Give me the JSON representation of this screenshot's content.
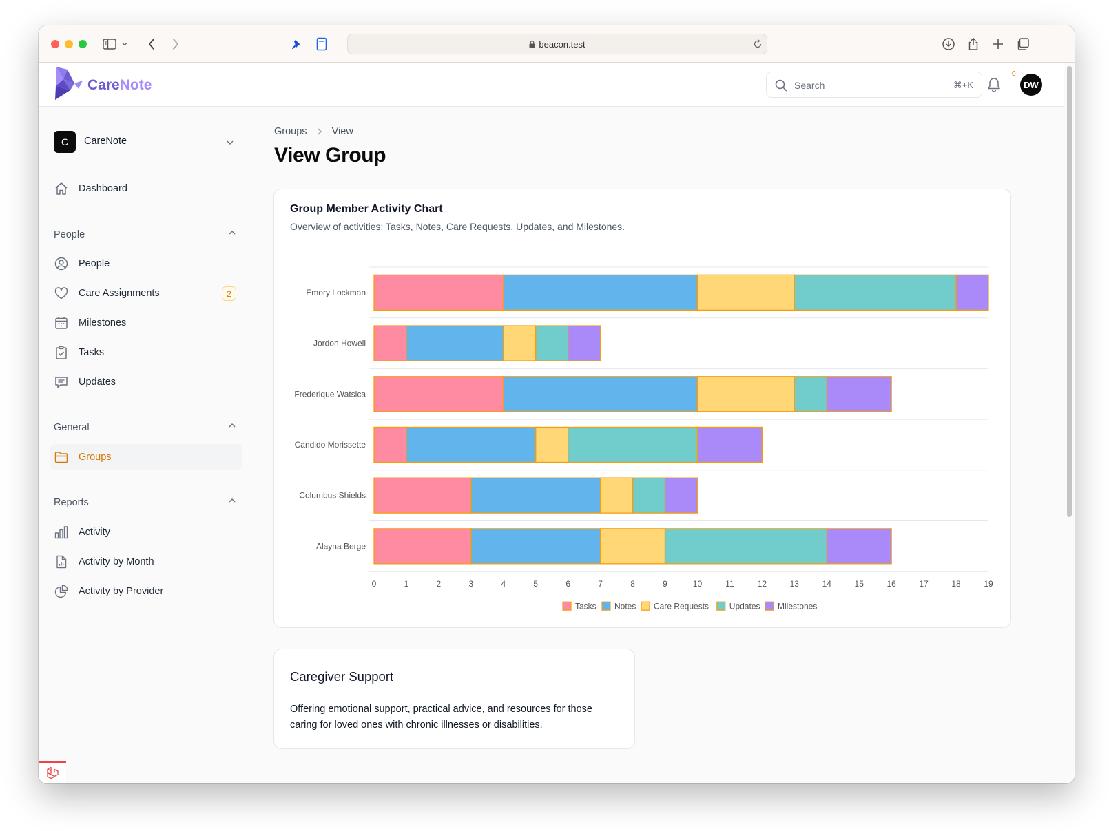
{
  "browser": {
    "url": "beacon.test",
    "colors": {
      "close": "#ff5f57",
      "minimize": "#febc2e",
      "zoom": "#28c840"
    },
    "icons": [
      "sidebar-icon",
      "chevron-down-icon",
      "back-icon",
      "forward-icon",
      "pin-icon",
      "notes-icon",
      "lock-icon",
      "reload-icon",
      "download-icon",
      "share-icon",
      "plus-icon",
      "tabs-icon"
    ]
  },
  "header": {
    "brand_a": "Care",
    "brand_b": "Note",
    "brand_colors": {
      "a": "#6d5bd0",
      "b": "#a78bfa"
    },
    "search_placeholder": "Search",
    "search_shortcut": "⌘+K",
    "notification_count": "0",
    "avatar_initials": "DW"
  },
  "sidebar": {
    "team_initial": "C",
    "team_name": "CareNote",
    "dashboard": "Dashboard",
    "groups": [
      {
        "label": "People",
        "items": [
          {
            "label": "People",
            "icon": "user-circle-icon"
          },
          {
            "label": "Care Assignments",
            "icon": "heart-icon",
            "count": "2"
          },
          {
            "label": "Milestones",
            "icon": "calendar-icon"
          },
          {
            "label": "Tasks",
            "icon": "clipboard-check-icon"
          },
          {
            "label": "Updates",
            "icon": "chat-icon"
          }
        ]
      },
      {
        "label": "General",
        "items": [
          {
            "label": "Groups",
            "icon": "folder-icon",
            "active": true
          }
        ]
      },
      {
        "label": "Reports",
        "items": [
          {
            "label": "Activity",
            "icon": "bar-chart-icon"
          },
          {
            "label": "Activity by Month",
            "icon": "document-chart-icon"
          },
          {
            "label": "Activity by Provider",
            "icon": "pie-chart-icon"
          }
        ]
      }
    ]
  },
  "page": {
    "breadcrumb": [
      "Groups",
      "View"
    ],
    "title": "View Group"
  },
  "chart_card": {
    "title": "Group Member Activity Chart",
    "subtitle": "Overview of activities: Tasks, Notes, Care Requests, Updates, and Milestones."
  },
  "chart_data": {
    "type": "bar",
    "orientation": "horizontal",
    "stacked": true,
    "categories": [
      "Emory Lockman",
      "Jordon Howell",
      "Frederique Watsica",
      "Candido Morissette",
      "Columbus Shields",
      "Alayna Berge"
    ],
    "series": [
      {
        "name": "Tasks",
        "color": "#ff8ba3",
        "values": [
          4,
          1,
          4,
          1,
          3,
          3
        ]
      },
      {
        "name": "Notes",
        "color": "#62b4ec",
        "values": [
          6,
          3,
          6,
          4,
          4,
          4
        ]
      },
      {
        "name": "Care Requests",
        "color": "#ffd777",
        "values": [
          3,
          1,
          3,
          1,
          1,
          2
        ]
      },
      {
        "name": "Updates",
        "color": "#70cdcb",
        "values": [
          5,
          1,
          1,
          4,
          1,
          5
        ]
      },
      {
        "name": "Milestones",
        "color": "#a98af8",
        "values": [
          1,
          1,
          2,
          2,
          1,
          2
        ]
      }
    ],
    "bar_border_color": "#f59e0b",
    "xlim": [
      0,
      19
    ],
    "xticks": [
      0,
      1,
      2,
      3,
      4,
      5,
      6,
      7,
      8,
      9,
      10,
      11,
      12,
      13,
      14,
      15,
      16,
      17,
      18,
      19
    ],
    "grid": "horizontal",
    "legend": "bottom"
  },
  "group_card": {
    "name": "Caregiver Support",
    "description": "Offering emotional support, practical advice, and resources for those caring for loved ones with chronic illnesses or disabilities."
  }
}
